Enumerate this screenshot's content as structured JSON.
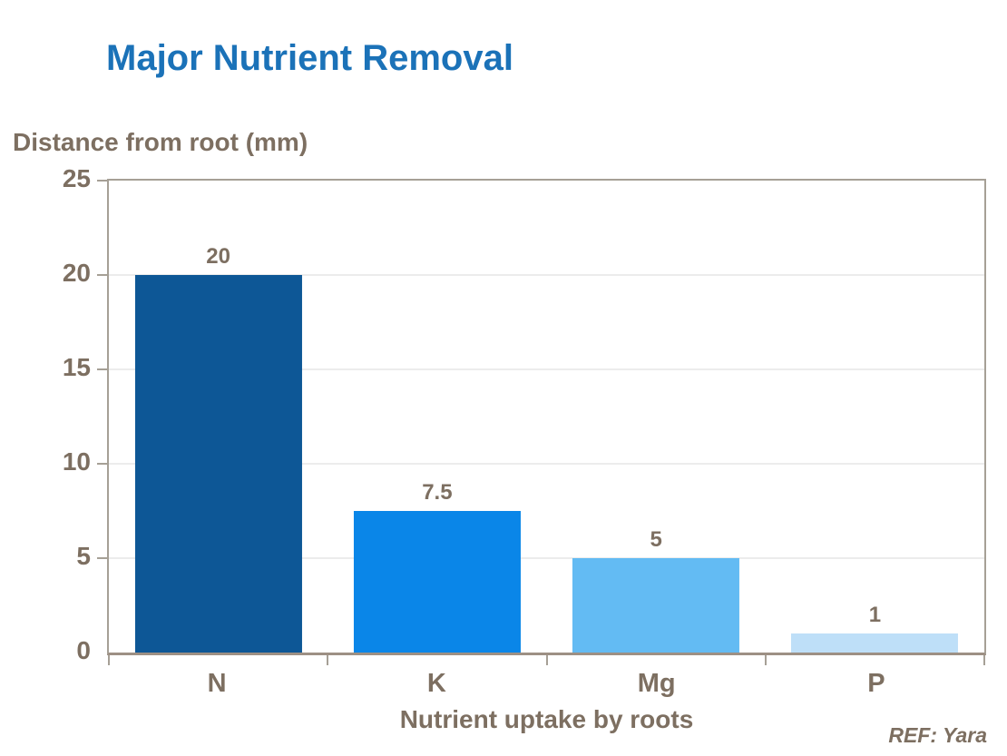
{
  "title": "Major Nutrient Removal",
  "ref_note": "REF: Yara",
  "colors": {
    "title_color": "#1B72B8",
    "text_color": "#7D6F61",
    "frame_color": "#A6A096",
    "axis_color": "#9D9084",
    "grid_color": "#D8D8D8"
  },
  "chart_data": {
    "type": "bar",
    "title": "Major Nutrient Removal",
    "categories": [
      "N",
      "K",
      "Mg",
      "P"
    ],
    "values": [
      20,
      7.5,
      5,
      1
    ],
    "value_labels": [
      "20",
      "7.5",
      "5",
      "1"
    ],
    "bar_colors": [
      "#0D5796",
      "#0A86E8",
      "#63BBF3",
      "#BEDFF8"
    ],
    "xlabel": "Nutrient uptake by roots",
    "ylabel": "Distance from root (mm)",
    "ylim": [
      0,
      25
    ],
    "yticks": [
      0,
      5,
      10,
      15,
      20,
      25
    ],
    "grid": true,
    "legend": false,
    "bar_width_fraction": 0.763,
    "annotation": "REF: Yara"
  }
}
